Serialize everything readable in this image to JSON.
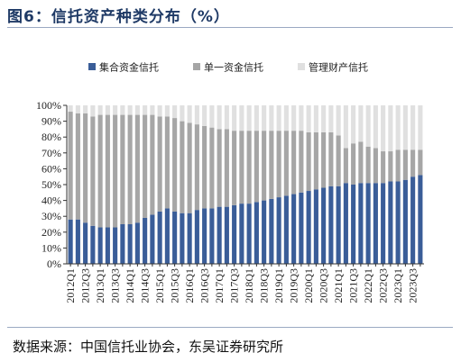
{
  "header": {
    "title": "图6：信托资产种类分布（%）"
  },
  "footer": {
    "source": "数据来源：中国信托业协会，东吴证券研究所"
  },
  "chart_data": {
    "type": "bar",
    "stacked": true,
    "title": "",
    "xlabel": "",
    "ylabel": "",
    "ylim": [
      0,
      100
    ],
    "y_ticks": [
      "0%",
      "10%",
      "20%",
      "30%",
      "40%",
      "50%",
      "60%",
      "70%",
      "80%",
      "90%",
      "100%"
    ],
    "legend_position": "top",
    "grid": false,
    "colors": {
      "集合资金信托": "#3a5d98",
      "单一资金信托": "#a6a6a6",
      "管理财产信托": "#e0e0e0"
    },
    "categories": [
      "2012Q1",
      "2012Q2",
      "2012Q3",
      "2012Q4",
      "2013Q1",
      "2013Q2",
      "2013Q3",
      "2013Q4",
      "2014Q1",
      "2014Q2",
      "2014Q3",
      "2014Q4",
      "2015Q1",
      "2015Q2",
      "2015Q3",
      "2015Q4",
      "2016Q1",
      "2016Q2",
      "2016Q3",
      "2016Q4",
      "2017Q1",
      "2017Q2",
      "2017Q3",
      "2017Q4",
      "2018Q1",
      "2018Q2",
      "2018Q3",
      "2018Q4",
      "2019Q1",
      "2019Q2",
      "2019Q3",
      "2019Q4",
      "2020Q1",
      "2020Q2",
      "2020Q3",
      "2020Q4",
      "2021Q1",
      "2021Q2",
      "2021Q3",
      "2021Q4",
      "2022Q1",
      "2022Q2",
      "2022Q3",
      "2022Q4",
      "2023Q1",
      "2023Q2",
      "2023Q3",
      "2023Q4"
    ],
    "x_tick_labels": [
      "2012Q1",
      "",
      "2012Q3",
      "",
      "2013Q1",
      "",
      "2013Q3",
      "",
      "2014Q1",
      "",
      "2014Q3",
      "",
      "2015Q1",
      "",
      "2015Q3",
      "",
      "2016Q1",
      "",
      "2016Q3",
      "",
      "2017Q1",
      "",
      "2017Q3",
      "",
      "2018Q1",
      "",
      "2018Q3",
      "",
      "2019Q1",
      "",
      "2019Q3",
      "",
      "2020Q1",
      "",
      "2020Q3",
      "",
      "2021Q1",
      "",
      "2021Q3",
      "",
      "2022Q1",
      "",
      "2022Q3",
      "",
      "2023Q1",
      "",
      "2023Q3",
      ""
    ],
    "series": [
      {
        "name": "集合资金信托",
        "values": [
          28,
          28,
          26,
          24,
          23,
          23,
          23,
          25,
          25,
          26,
          29,
          31,
          33,
          35,
          33,
          32,
          32,
          34,
          35,
          35,
          36,
          36,
          37,
          38,
          38,
          39,
          40,
          41,
          42,
          43,
          44,
          45,
          46,
          47,
          48,
          49,
          49,
          51,
          50,
          51,
          51,
          51,
          51,
          52,
          52,
          53,
          55,
          56
        ]
      },
      {
        "name": "单一资金信托",
        "values": [
          68,
          67,
          69,
          69,
          71,
          71,
          71,
          69,
          69,
          68,
          65,
          63,
          60,
          58,
          59,
          58,
          57,
          54,
          52,
          51,
          49,
          49,
          47,
          46,
          46,
          45,
          44,
          43,
          42,
          41,
          40,
          39,
          37,
          36,
          35,
          34,
          32,
          22,
          26,
          26,
          23,
          22,
          20,
          19,
          20,
          19,
          17,
          16
        ]
      },
      {
        "name": "管理财产信托",
        "values": [
          4,
          5,
          5,
          7,
          6,
          6,
          6,
          6,
          6,
          6,
          6,
          6,
          7,
          7,
          8,
          10,
          11,
          12,
          13,
          14,
          15,
          15,
          16,
          16,
          16,
          16,
          16,
          16,
          16,
          16,
          16,
          16,
          17,
          17,
          17,
          17,
          19,
          27,
          24,
          23,
          26,
          27,
          29,
          29,
          28,
          28,
          28,
          28
        ]
      }
    ]
  }
}
